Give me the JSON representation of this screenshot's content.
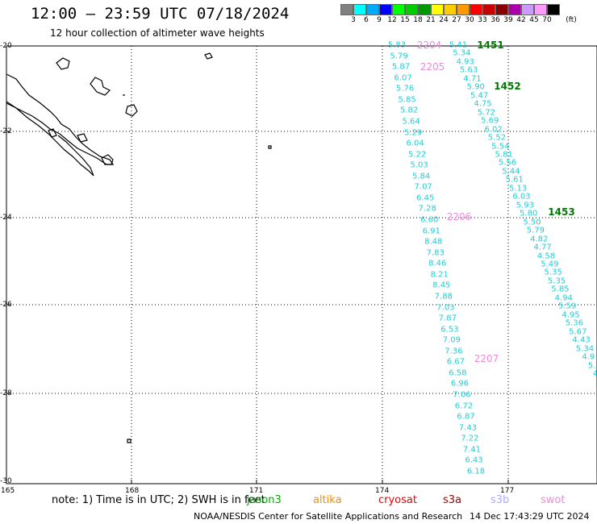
{
  "title": "12:00 – 23:59 UTC 07/18/2024",
  "subtitle": "12 hour collection of altimeter wave heights",
  "legend": {
    "unit": "(ft)",
    "colors": [
      "#808080",
      "#00ffff",
      "#00aaff",
      "#0000ff",
      "#00ff00",
      "#00cc00",
      "#009900",
      "#ffff00",
      "#ffcc00",
      "#ff9900",
      "#ff0000",
      "#cc0000",
      "#880000",
      "#aa00aa",
      "#cc99ff",
      "#ff99ff",
      "#000000"
    ],
    "ticks": [
      "3",
      "6",
      "9",
      "12",
      "15",
      "18",
      "21",
      "24",
      "27",
      "30",
      "33",
      "36",
      "39",
      "42",
      "45",
      "70"
    ]
  },
  "axes": {
    "lat_labels": [
      "-20",
      "-22",
      "-24",
      "-26",
      "-28",
      "-30"
    ],
    "lon_labels": [
      "165",
      "168",
      "171",
      "174",
      "177"
    ]
  },
  "pass_labels": {
    "p2204": "2204",
    "p2205": "2205",
    "p2206": "2206",
    "p2207": "2207",
    "p1451": "1451",
    "p1452": "1452",
    "p1453": "1453"
  },
  "track_west": [
    "5.83",
    "5.79",
    "5.87",
    "6.07",
    "5.76",
    "5.85",
    "5.82",
    "5.64",
    "5.29",
    "6.04",
    "5.22",
    "5.03",
    "5.84",
    "7.07",
    "6.45",
    "7.28",
    "6.60",
    "6.91",
    "8.48",
    "7.83",
    "8.46",
    "8.21",
    "8.45",
    "7.88",
    "7.03",
    "7.87",
    "6.53",
    "7.09",
    "7.36",
    "6.67",
    "6.58",
    "6.96",
    "7.06",
    "6.72",
    "6.87",
    "7.43",
    "7.22",
    "7.41",
    "6.43",
    "6.18"
  ],
  "track_east": [
    "5.41",
    "5.34",
    "4.93",
    "5.63",
    "4.71",
    "5.90",
    "5.47",
    "4.75",
    "5.72",
    "5.69",
    "6.02",
    "5.52",
    "5.54",
    "5.81",
    "5.56",
    "5.44",
    "5.61",
    "5.13",
    "6.03",
    "5.93",
    "5.80",
    "5.50",
    "5.79",
    "4.82",
    "4.77",
    "4.58",
    "5.49",
    "5.35",
    "5.35",
    "5.85",
    "4.94",
    "5.59",
    "4.95",
    "5.36",
    "5.67",
    "4.43",
    "5.34",
    "4.9",
    "5.",
    "4"
  ],
  "note": "note: 1) Time is in UTC; 2) SWH is in feet",
  "satellites": {
    "jason": "jason3",
    "altika": "altika",
    "cryosat": "cryosat",
    "s3a": "s3a",
    "s3b": "s3b",
    "swot": "swot"
  },
  "footer": "NOAA/NESDIS Center for Satellite Applications and Research",
  "footer_time": "14 Dec 17:43:29 UTC 2024"
}
